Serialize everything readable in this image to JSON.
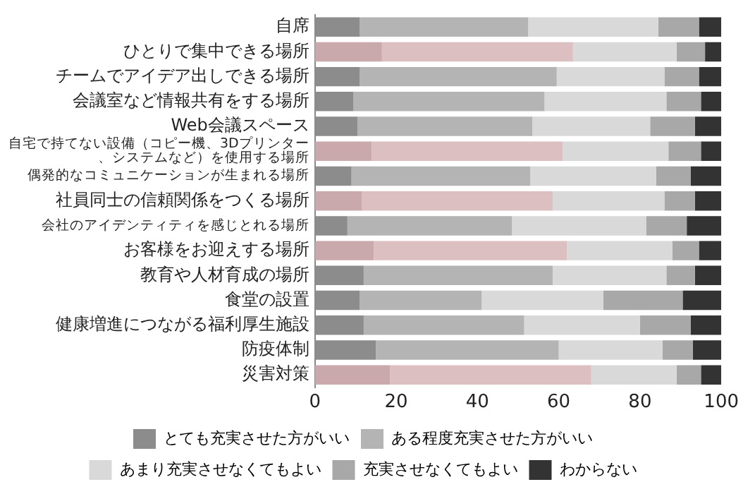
{
  "chart_data": {
    "type": "bar",
    "orientation": "horizontal",
    "stacked": true,
    "categories": [
      "自席",
      "ひとりで集中できる場所",
      "チームでアイデア出しできる場所",
      "会議室など情報共有をする場所",
      "Web会議スペース",
      "自宅で持てない設備（コピー機、3Dプリンター、システムなど）を使用する場所",
      "偶発的なコミュニケーションが生まれる場所",
      "社員同士の信頼関係をつくる場所",
      "会社のアイデンティティを感じとれる場所",
      "お客様をお迎えする場所",
      "教育や人材育成の場所",
      "食堂の設置",
      "健康増進につながる福利厚生施設",
      "防疫体制",
      "災害対策"
    ],
    "series": [
      {
        "name": "とても充実させた方がいい",
        "color": "#8c8c8c",
        "colors": [
          "#8c8c8c",
          "#c9a9ab",
          "#8c8c8c",
          "#8c8c8c",
          "#8c8c8c",
          "#c9a9ab",
          "#8c8c8c",
          "#c9a9ab",
          "#8c8c8c",
          "#c9a9ab",
          "#8c8c8c",
          "#8c8c8c",
          "#8c8c8c",
          "#8c8c8c",
          "#c9a9ab"
        ],
        "values": [
          11,
          16.5,
          11,
          9.5,
          10.5,
          14,
          9,
          11.5,
          8,
          14.5,
          12,
          11,
          12,
          15,
          18.5
        ]
      },
      {
        "name": "ある程度充実させた方がいい",
        "color": "#b4b4b4",
        "colors": [
          "#b4b4b4",
          "#dcbfc1",
          "#b4b4b4",
          "#b4b4b4",
          "#b4b4b4",
          "#dcbfc1",
          "#b4b4b4",
          "#dcbfc1",
          "#b4b4b4",
          "#dcbfc1",
          "#b4b4b4",
          "#b4b4b4",
          "#b4b4b4",
          "#b4b4b4",
          "#dcbfc1"
        ],
        "values": [
          41.5,
          47,
          48.5,
          47,
          43,
          47,
          44,
          47,
          40.5,
          47.5,
          46.5,
          30,
          39.5,
          45,
          49.5
        ]
      },
      {
        "name": "あまり充実させなくてもよい",
        "color": "#d9d9d9",
        "values": [
          32,
          25.5,
          26.5,
          30,
          29,
          26,
          31,
          27.5,
          33,
          26,
          28,
          30,
          28.5,
          25.5,
          21
        ]
      },
      {
        "name": "充実させなくてもよい",
        "color": "#a8a8a8",
        "values": [
          10,
          7,
          8.5,
          8.5,
          11,
          8,
          8.5,
          7.5,
          10,
          6.5,
          7,
          19.5,
          12.5,
          7.5,
          6
        ]
      },
      {
        "name": "わからない",
        "color": "#333333",
        "values": [
          5.5,
          4,
          5.5,
          5,
          6.5,
          5,
          7.5,
          6.5,
          8.5,
          5.5,
          6.5,
          9.5,
          7.5,
          7,
          5
        ]
      }
    ],
    "xlim": [
      0,
      100
    ],
    "xticks": [
      0,
      20,
      40,
      60,
      80,
      100
    ],
    "grid": false,
    "legend": "bottom"
  }
}
